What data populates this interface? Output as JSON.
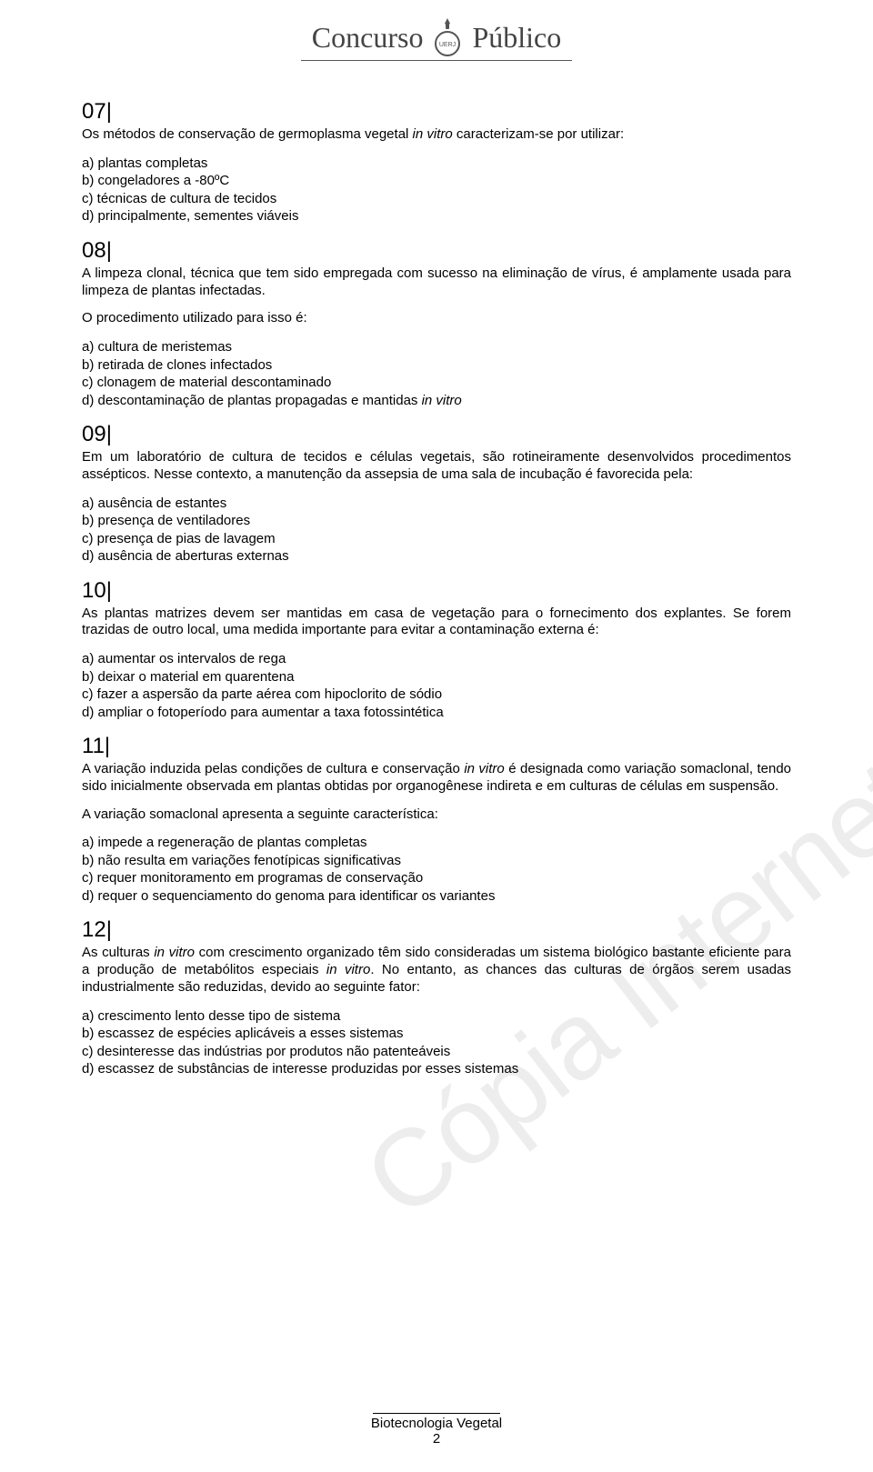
{
  "watermark": "Cópia Internet http://concursos.srh.uerj.br/",
  "header": {
    "left": "Concurso",
    "right": "Público"
  },
  "questions": [
    {
      "num": "07|",
      "text_html": "Os métodos de conservação de germoplasma vegetal <span class=\"italic\">in vitro</span> caracterizam-se por utilizar:",
      "options": [
        "a) plantas completas",
        "b) congeladores a -80ºC",
        "c) técnicas de cultura de tecidos",
        "d) principalmente, sementes viáveis"
      ]
    },
    {
      "num": "08|",
      "text_html": "A limpeza clonal, técnica que tem sido empregada com sucesso na eliminação de vírus, é amplamente usada para limpeza de plantas infectadas.",
      "sub_html": "O procedimento utilizado para isso é:",
      "options": [
        "a) cultura de meristemas",
        "b) retirada de clones infectados",
        "c) clonagem de material descontaminado",
        "d) descontaminação de plantas propagadas e mantidas <span class=\"italic\">in vitro</span>"
      ]
    },
    {
      "num": "09|",
      "text_html": "Em um laboratório de cultura de tecidos e células vegetais, são rotineiramente desenvolvidos procedimentos assépticos. Nesse contexto, a manutenção da assepsia de uma sala de incubação é favorecida pela:",
      "options": [
        "a) ausência de estantes",
        "b) presença de ventiladores",
        "c) presença de pias de lavagem",
        "d) ausência de aberturas externas"
      ]
    },
    {
      "num": "10|",
      "text_html": "As plantas matrizes devem ser mantidas em casa de vegetação para o fornecimento dos explantes. Se forem trazidas de outro local, uma medida importante para evitar a contaminação externa é:",
      "options": [
        "a) aumentar os intervalos de rega",
        "b) deixar o material em quarentena",
        "c) fazer a aspersão da parte aérea com hipoclorito de sódio",
        "d) ampliar o fotoperíodo para aumentar a taxa fotossintética"
      ]
    },
    {
      "num": "11|",
      "text_html": "A variação induzida pelas condições de cultura e conservação <span class=\"italic\">in vitro</span> é designada como variação somaclonal, tendo sido inicialmente observada em plantas obtidas por organogênese indireta e em culturas de células em suspensão.",
      "sub_html": "A variação somaclonal apresenta a seguinte característica:",
      "options": [
        "a) impede a regeneração de plantas completas",
        "b) não resulta em variações fenotípicas significativas",
        "c) requer monitoramento em programas de conservação",
        "d) requer o sequenciamento do genoma para identificar os variantes"
      ]
    },
    {
      "num": "12|",
      "text_html": "As culturas <span class=\"italic\">in vitro</span> com crescimento organizado têm sido consideradas um sistema biológico bastante eficiente para a produção de metabólitos especiais <span class=\"italic\">in vitro</span>. No entanto, as chances das culturas de órgãos serem usadas industrialmente são reduzidas, devido ao seguinte fator:",
      "options": [
        "a) crescimento lento desse tipo de sistema",
        "b) escassez de espécies aplicáveis a esses sistemas",
        "c) desinteresse das indústrias por produtos não patenteáveis",
        "d) escassez de substâncias de interesse produzidas por esses sistemas"
      ]
    }
  ],
  "footer": {
    "title": "Biotecnologia Vegetal",
    "page": "2"
  }
}
